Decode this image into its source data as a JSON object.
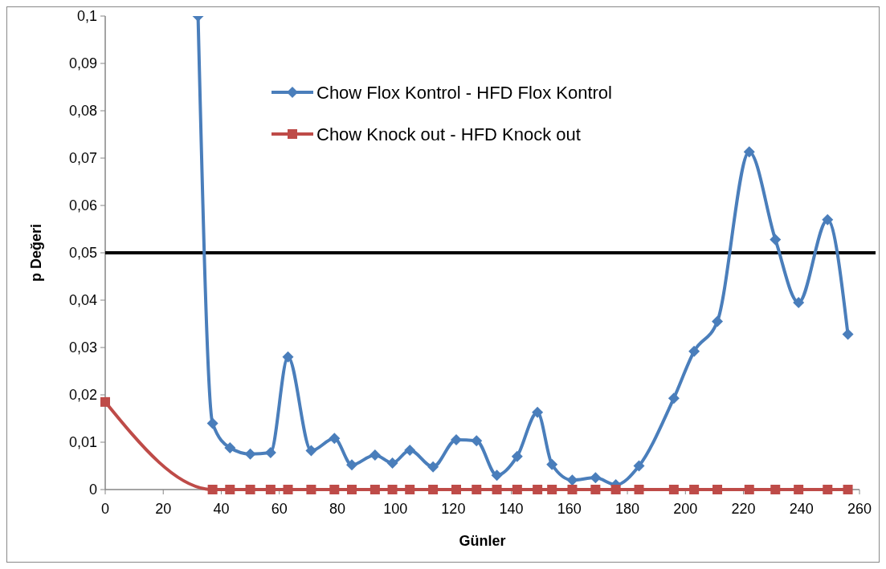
{
  "chart_data": {
    "type": "line",
    "xlabel": "Günler",
    "ylabel": "p Değeri",
    "xlim": [
      0,
      260
    ],
    "xticks": [
      0,
      20,
      40,
      60,
      80,
      100,
      120,
      140,
      160,
      180,
      200,
      220,
      240,
      260
    ],
    "ylim": [
      0,
      0.1
    ],
    "yticks": [
      0,
      {
        "value": 0.01,
        "label": "0,01"
      },
      {
        "value": 0.02,
        "label": "0,02"
      },
      {
        "value": 0.03,
        "label": "0,03"
      },
      {
        "value": 0.04,
        "label": "0,04"
      },
      {
        "value": 0.05,
        "label": "0,05"
      },
      {
        "value": 0.06,
        "label": "0,06"
      },
      {
        "value": 0.07,
        "label": "0,07"
      },
      {
        "value": 0.08,
        "label": "0,08"
      },
      {
        "value": 0.09,
        "label": "0,09"
      },
      {
        "value": 0.1,
        "label": "0,1"
      }
    ],
    "grid": false,
    "legend": "top",
    "line_style": "solid",
    "ref_lines": [
      {
        "axis": "y",
        "value": 0.05,
        "color": "#000000"
      }
    ],
    "series": [
      {
        "name": "Chow Flox Kontrol - HFD Flox Kontrol",
        "color": "#4a7ebb",
        "marker": "diamond",
        "x": [
          32,
          37,
          43,
          50,
          57,
          63,
          71,
          79,
          85,
          93,
          99,
          105,
          113,
          121,
          128,
          135,
          142,
          149,
          154,
          161,
          169,
          176,
          184,
          196,
          203,
          211,
          222,
          231,
          239,
          249,
          256
        ],
        "values": [
          0.1,
          0.014,
          0.0088,
          0.0075,
          0.0078,
          0.028,
          0.0082,
          0.0108,
          0.0052,
          0.0073,
          0.0056,
          0.0083,
          0.0048,
          0.0105,
          0.0103,
          0.003,
          0.007,
          0.0163,
          0.0053,
          0.002,
          0.0025,
          0.001,
          0.005,
          0.0193,
          0.0292,
          0.0355,
          0.0713,
          0.0528,
          0.0395,
          0.057,
          0.0328
        ]
      },
      {
        "name": "Chow Knock out - HFD Knock out",
        "color": "#be4b48",
        "marker": "square",
        "x": [
          0,
          37,
          43,
          50,
          57,
          63,
          71,
          79,
          85,
          93,
          99,
          105,
          113,
          121,
          128,
          135,
          142,
          149,
          154,
          161,
          169,
          176,
          184,
          196,
          203,
          211,
          222,
          231,
          239,
          249,
          256
        ],
        "values": [
          0.0185,
          0,
          0,
          0,
          0,
          0,
          0,
          0,
          0,
          0,
          0,
          0,
          0,
          0,
          0,
          0,
          0,
          0,
          0,
          0,
          0,
          0,
          0,
          0,
          0,
          0,
          0,
          0,
          0,
          0,
          0
        ]
      }
    ]
  }
}
